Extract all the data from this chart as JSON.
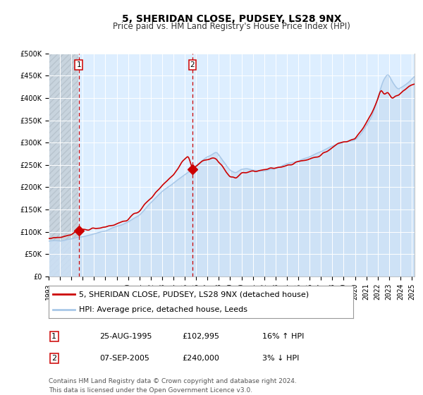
{
  "title": "5, SHERIDAN CLOSE, PUDSEY, LS28 9NX",
  "subtitle": "Price paid vs. HM Land Registry's House Price Index (HPI)",
  "ylabel_ticks": [
    "£0",
    "£50K",
    "£100K",
    "£150K",
    "£200K",
    "£250K",
    "£300K",
    "£350K",
    "£400K",
    "£450K",
    "£500K"
  ],
  "ytick_values": [
    0,
    50000,
    100000,
    150000,
    200000,
    250000,
    300000,
    350000,
    400000,
    450000,
    500000
  ],
  "ylim": [
    0,
    500000
  ],
  "sale1_date": 1995.65,
  "sale1_price": 102995,
  "sale1_label": "1",
  "sale1_pct": "16%",
  "sale1_dir": "↑",
  "sale1_date_str": "25-AUG-1995",
  "sale2_date": 2005.68,
  "sale2_price": 240000,
  "sale2_label": "2",
  "sale2_pct": "3%",
  "sale2_dir": "↓",
  "sale2_date_str": "07-SEP-2005",
  "legend_property": "5, SHERIDAN CLOSE, PUDSEY, LS28 9NX (detached house)",
  "legend_hpi": "HPI: Average price, detached house, Leeds",
  "property_line_color": "#cc0000",
  "hpi_line_color": "#a8c8e8",
  "hpi_fill_color": "#cce0f5",
  "plot_bg_color": "#ddeeff",
  "grid_color": "#ffffff",
  "dashed_line_color": "#cc0000",
  "marker_color": "#cc0000",
  "footnote": "Contains HM Land Registry data © Crown copyright and database right 2024.\nThis data is licensed under the Open Government Licence v3.0.",
  "title_fontsize": 10,
  "subtitle_fontsize": 8.5,
  "tick_fontsize": 7,
  "legend_fontsize": 8,
  "footnote_fontsize": 6.5,
  "xtick_years": [
    1993,
    1994,
    1995,
    1996,
    1997,
    1998,
    1999,
    2000,
    2001,
    2002,
    2003,
    2004,
    2005,
    2006,
    2007,
    2008,
    2009,
    2010,
    2011,
    2012,
    2013,
    2014,
    2015,
    2016,
    2017,
    2018,
    2019,
    2020,
    2021,
    2022,
    2023,
    2024,
    2025
  ]
}
